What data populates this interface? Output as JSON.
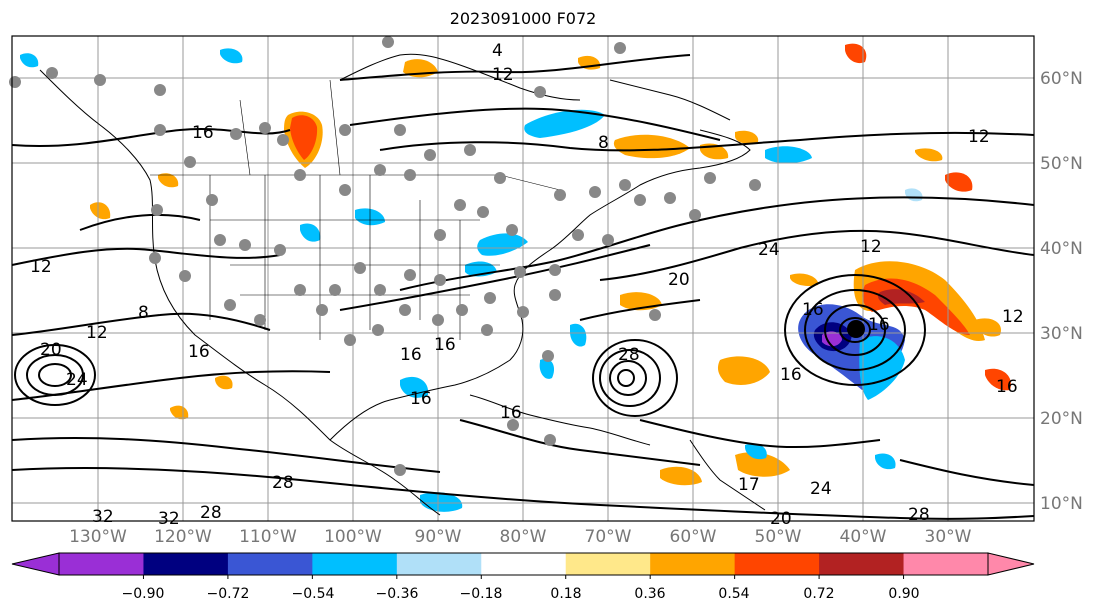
{
  "title": "2023091000 F072",
  "lat_labels": [
    "60°N",
    "50°N",
    "40°N",
    "30°N",
    "20°N",
    "10°N"
  ],
  "lon_labels": [
    "130°W",
    "120°W",
    "110°W",
    "100°W",
    "90°W",
    "80°W",
    "70°W",
    "60°W",
    "50°W",
    "40°W",
    "30°W"
  ],
  "contour_labels": [
    "4",
    "12",
    "8",
    "12",
    "16",
    "24",
    "12",
    "20",
    "12",
    "16",
    "16",
    "16",
    "16",
    "12",
    "8",
    "20",
    "24",
    "16",
    "16",
    "16",
    "28",
    "12",
    "16",
    "16",
    "24",
    "17",
    "28",
    "32",
    "32",
    "28",
    "20",
    "28"
  ],
  "colorbar": {
    "tick_labels": [
      "−0.90",
      "−0.72",
      "−0.54",
      "−0.36",
      "−0.18",
      "0.18",
      "0.36",
      "0.54",
      "0.72",
      "0.90"
    ],
    "colors": [
      "#9a2fd6",
      "#000080",
      "#3a56d4",
      "#00bfff",
      "#b0e0f8",
      "#ffffff",
      "#ffe88a",
      "#ffa500",
      "#ff4500",
      "#b22222",
      "#ff88aa",
      "#ff88aa"
    ],
    "under_color": "#9a2fd6",
    "over_color": "#ff88aa"
  },
  "storm_center_marker": "black-dot"
}
